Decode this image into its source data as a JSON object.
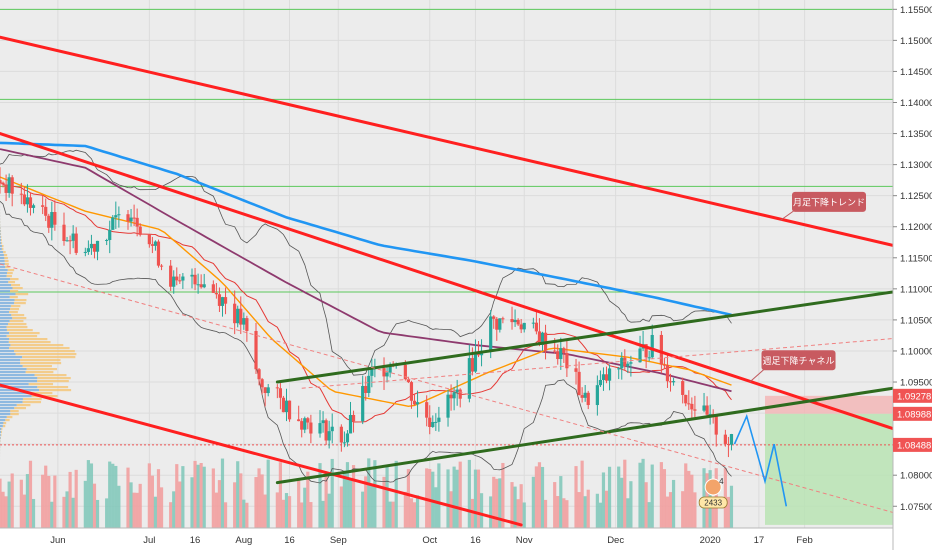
{
  "chart_data": {
    "type": "candlestick",
    "title": "",
    "xlabel": "",
    "ylabel": "",
    "ylim": [
      1.0715,
      1.1565
    ],
    "x_range": [
      "2019-05-13",
      "2020-03-01"
    ],
    "y_ticks": [
      "1.07500",
      "1.08000",
      "1.08500",
      "1.09000",
      "1.09500",
      "1.10000",
      "1.10500",
      "1.11000",
      "1.11500",
      "1.12000",
      "1.12500",
      "1.13000",
      "1.13500",
      "1.14000",
      "1.14500",
      "1.15000",
      "1.15500"
    ],
    "x_ticks": [
      {
        "date": "2019-06-01",
        "label": "Jun"
      },
      {
        "date": "2019-07-01",
        "label": "Jul"
      },
      {
        "date": "2019-07-16",
        "label": "16"
      },
      {
        "date": "2019-08-01",
        "label": "Aug"
      },
      {
        "date": "2019-08-16",
        "label": "16"
      },
      {
        "date": "2019-09-01",
        "label": "Sep"
      },
      {
        "date": "2019-10-01",
        "label": "Oct"
      },
      {
        "date": "2019-10-16",
        "label": "16"
      },
      {
        "date": "2019-11-01",
        "label": "Nov"
      },
      {
        "date": "2019-12-01",
        "label": "Dec"
      },
      {
        "date": "2020-01-01",
        "label": "2020"
      },
      {
        "date": "2020-01-17",
        "label": "17"
      },
      {
        "date": "2020-02-01",
        "label": "Feb"
      }
    ],
    "price_path": [
      {
        "x": "2019-05-13",
        "y": 1.1275
      },
      {
        "x": "2019-05-31",
        "y": 1.1205
      },
      {
        "x": "2019-06-10",
        "y": 1.116
      },
      {
        "x": "2019-06-25",
        "y": 1.123
      },
      {
        "x": "2019-07-10",
        "y": 1.11
      },
      {
        "x": "2019-07-15",
        "y": 1.1125
      },
      {
        "x": "2019-07-25",
        "y": 1.1085
      },
      {
        "x": "2019-08-01",
        "y": 1.104
      },
      {
        "x": "2019-08-06",
        "y": 1.095
      },
      {
        "x": "2019-08-20",
        "y": 1.089
      },
      {
        "x": "2019-09-03",
        "y": 1.086
      },
      {
        "x": "2019-09-12",
        "y": 1.096
      },
      {
        "x": "2019-09-20",
        "y": 1.099
      },
      {
        "x": "2019-09-26",
        "y": 1.092
      },
      {
        "x": "2019-10-01",
        "y": 1.089
      },
      {
        "x": "2019-10-10",
        "y": 1.093
      },
      {
        "x": "2019-10-21",
        "y": 1.1045
      },
      {
        "x": "2019-10-30",
        "y": 1.105
      },
      {
        "x": "2019-11-14",
        "y": 1.099
      },
      {
        "x": "2019-11-21",
        "y": 1.092
      },
      {
        "x": "2019-11-29",
        "y": 1.096
      },
      {
        "x": "2019-12-13",
        "y": 1.101
      },
      {
        "x": "2019-12-20",
        "y": 1.095
      },
      {
        "x": "2019-12-31",
        "y": 1.089
      },
      {
        "x": "2020-01-08",
        "y": 1.085
      }
    ],
    "projection_path": [
      {
        "x": "2020-01-09",
        "y": 1.085
      },
      {
        "x": "2020-01-13",
        "y": 1.0895
      },
      {
        "x": "2020-01-19",
        "y": 1.079
      },
      {
        "x": "2020-01-22",
        "y": 1.085
      },
      {
        "x": "2020-01-26",
        "y": 1.075
      }
    ],
    "horizontal_levels": [
      1.155,
      1.1405,
      1.1265,
      1.1095
    ],
    "dotted_level": 1.08488,
    "price_labels": [
      {
        "value": 1.09278,
        "text": "1.09278",
        "color": "#f05454"
      },
      {
        "value": 1.08988,
        "text": "1.08988",
        "color": "#f05454"
      },
      {
        "value": 1.08488,
        "text": "1.08488",
        "color": "#f05454"
      }
    ],
    "target_zone": {
      "x_from": "2020-01-19",
      "x_to": "2020-03-01",
      "y_from": 1.09278,
      "y_to": 1.08988,
      "y_low": 1.072
    },
    "trend_lines": [
      {
        "name": "monthly",
        "from": {
          "x": "2019-05-13",
          "y": 1.1505
        },
        "to": {
          "x": "2020-03-01",
          "y": 1.117
        },
        "color": "#ff2020"
      },
      {
        "name": "weekly-upper",
        "from": {
          "x": "2019-05-13",
          "y": 1.135
        },
        "to": {
          "x": "2020-03-01",
          "y": 1.0875
        },
        "color": "#ff2020"
      },
      {
        "name": "weekly-lower",
        "from": {
          "x": "2019-05-13",
          "y": 1.0945
        },
        "to": {
          "x": "2019-10-31",
          "y": 1.072
        },
        "color": "#ff2020"
      },
      {
        "name": "channel-upper",
        "from": {
          "x": "2019-08-12",
          "y": 1.095
        },
        "to": {
          "x": "2020-03-01",
          "y": 1.1095
        },
        "color": "#2f6b1e"
      },
      {
        "name": "channel-lower",
        "from": {
          "x": "2019-08-12",
          "y": 1.0788
        },
        "to": {
          "x": "2020-03-01",
          "y": 1.094
        },
        "color": "#2f6b1e"
      }
    ],
    "moving_averages": [
      {
        "name": "blue",
        "color": "#2196f3",
        "points": [
          {
            "x": "2019-05-13",
            "y": 1.1335
          },
          {
            "x": "2019-06-10",
            "y": 1.133
          },
          {
            "x": "2019-07-10",
            "y": 1.1285
          },
          {
            "x": "2019-08-15",
            "y": 1.1215
          },
          {
            "x": "2019-09-15",
            "y": 1.117
          },
          {
            "x": "2019-10-15",
            "y": 1.1145
          },
          {
            "x": "2019-11-15",
            "y": 1.1115
          },
          {
            "x": "2019-12-15",
            "y": 1.1085
          },
          {
            "x": "2020-01-08",
            "y": 1.1058
          }
        ]
      },
      {
        "name": "purple",
        "color": "#8e3a6e",
        "points": [
          {
            "x": "2019-05-13",
            "y": 1.1325
          },
          {
            "x": "2019-06-10",
            "y": 1.1295
          },
          {
            "x": "2019-07-10",
            "y": 1.121
          },
          {
            "x": "2019-08-15",
            "y": 1.111
          },
          {
            "x": "2019-09-15",
            "y": 1.103
          },
          {
            "x": "2019-10-15",
            "y": 1.101
          },
          {
            "x": "2019-11-15",
            "y": 1.0995
          },
          {
            "x": "2019-12-15",
            "y": 1.0965
          },
          {
            "x": "2020-01-08",
            "y": 1.0935
          }
        ]
      },
      {
        "name": "orange",
        "color": "#ff9800",
        "points": [
          {
            "x": "2019-05-13",
            "y": 1.128
          },
          {
            "x": "2019-06-10",
            "y": 1.1225
          },
          {
            "x": "2019-07-05",
            "y": 1.1195
          },
          {
            "x": "2019-07-25",
            "y": 1.111
          },
          {
            "x": "2019-08-10",
            "y": 1.102
          },
          {
            "x": "2019-08-30",
            "y": 1.0935
          },
          {
            "x": "2019-09-25",
            "y": 1.091
          },
          {
            "x": "2019-10-20",
            "y": 1.0965
          },
          {
            "x": "2019-11-10",
            "y": 1.1005
          },
          {
            "x": "2019-12-05",
            "y": 1.099
          },
          {
            "x": "2019-12-25",
            "y": 1.097
          },
          {
            "x": "2020-01-08",
            "y": 1.0945
          }
        ]
      }
    ],
    "annotations": [
      {
        "text": "月足下降トレンド",
        "anchor": {
          "x": "2020-01-24",
          "y": 1.121
        },
        "box": {
          "x": "2020-02-09",
          "y": 1.124
        }
      },
      {
        "text": "週足下降チャネル",
        "anchor": {
          "x": "2020-01-14",
          "y": 1.095
        },
        "box": {
          "x": "2020-01-30",
          "y": 1.0985
        }
      }
    ],
    "badge": {
      "text": "4",
      "subtext": "2433"
    }
  }
}
